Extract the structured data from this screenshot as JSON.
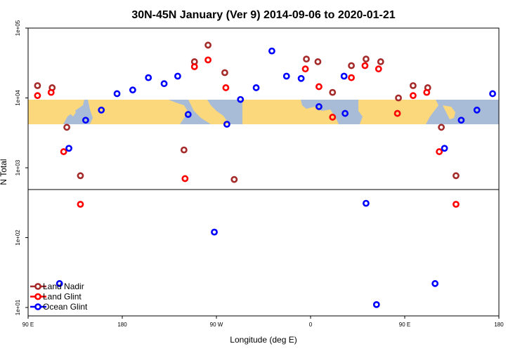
{
  "chart_data": {
    "type": "scatter",
    "title": "30N-45N January (Ver 9)   2014-09-06 to 2020-01-21",
    "xlabel": "Longitude (deg E)",
    "ylabel": "N Total",
    "y_scale": "log",
    "ylim": [
      10,
      100000
    ],
    "x_ticks": [
      {
        "value": 0,
        "label": "90 E"
      },
      {
        "value": 90,
        "label": "180"
      },
      {
        "value": 180,
        "label": "90 W"
      },
      {
        "value": 270,
        "label": "0"
      },
      {
        "value": 360,
        "label": "90 E"
      },
      {
        "value": 450,
        "label": "180"
      }
    ],
    "y_ticks": [
      {
        "value": 10,
        "label": "1e+01"
      },
      {
        "value": 100,
        "label": "1e+02"
      },
      {
        "value": 1000,
        "label": "1e+03"
      },
      {
        "value": 10000,
        "label": "1e+04"
      },
      {
        "value": 100000,
        "label": "1e+05"
      }
    ],
    "colors": {
      "land_nadir": "#a52a2a",
      "land_glint": "#ff0000",
      "ocean_glint": "#0000ff",
      "map_ocean": "#a8bcd8",
      "map_land": "#fcd87c"
    },
    "grid": false,
    "legend_position": "bottom-left",
    "series": [
      {
        "name": "Land Nadir",
        "color": "#a52a2a",
        "points": [
          {
            "x": 9,
            "y": 15000
          },
          {
            "x": 23,
            "y": 14000
          },
          {
            "x": 37,
            "y": 3800
          },
          {
            "x": 50,
            "y": 770
          },
          {
            "x": 149,
            "y": 1800
          },
          {
            "x": 159,
            "y": 33000
          },
          {
            "x": 172,
            "y": 57000
          },
          {
            "x": 188,
            "y": 23000
          },
          {
            "x": 197,
            "y": 680
          },
          {
            "x": 266,
            "y": 36000
          },
          {
            "x": 277,
            "y": 33000
          },
          {
            "x": 291,
            "y": 12000
          },
          {
            "x": 309,
            "y": 29000
          },
          {
            "x": 323,
            "y": 36000
          },
          {
            "x": 337,
            "y": 33000
          },
          {
            "x": 354,
            "y": 10000
          },
          {
            "x": 368,
            "y": 15000
          },
          {
            "x": 382,
            "y": 14000
          },
          {
            "x": 395,
            "y": 3800
          },
          {
            "x": 409,
            "y": 770
          }
        ]
      },
      {
        "name": "Land Glint",
        "color": "#ff0000",
        "points": [
          {
            "x": 9,
            "y": 10800
          },
          {
            "x": 22,
            "y": 12000
          },
          {
            "x": 34,
            "y": 1700
          },
          {
            "x": 50,
            "y": 300
          },
          {
            "x": 150,
            "y": 700
          },
          {
            "x": 159,
            "y": 28000
          },
          {
            "x": 172,
            "y": 35000
          },
          {
            "x": 189,
            "y": 14000
          },
          {
            "x": 265,
            "y": 26000
          },
          {
            "x": 278,
            "y": 14500
          },
          {
            "x": 291,
            "y": 5300
          },
          {
            "x": 309,
            "y": 19500
          },
          {
            "x": 322,
            "y": 29000
          },
          {
            "x": 335,
            "y": 26000
          },
          {
            "x": 353,
            "y": 6000
          },
          {
            "x": 368,
            "y": 10800
          },
          {
            "x": 381,
            "y": 12000
          },
          {
            "x": 393,
            "y": 1700
          },
          {
            "x": 409,
            "y": 300
          }
        ]
      },
      {
        "name": "Ocean Glint",
        "color": "#0000ff",
        "points": [
          {
            "x": 30,
            "y": 22
          },
          {
            "x": 39,
            "y": 1900
          },
          {
            "x": 55,
            "y": 4800
          },
          {
            "x": 70,
            "y": 6700
          },
          {
            "x": 85,
            "y": 11500
          },
          {
            "x": 100,
            "y": 13000
          },
          {
            "x": 115,
            "y": 19500
          },
          {
            "x": 130,
            "y": 16000
          },
          {
            "x": 143,
            "y": 20500
          },
          {
            "x": 153,
            "y": 5800
          },
          {
            "x": 178,
            "y": 120
          },
          {
            "x": 190,
            "y": 4200
          },
          {
            "x": 203,
            "y": 9500
          },
          {
            "x": 218,
            "y": 14000
          },
          {
            "x": 233,
            "y": 47000
          },
          {
            "x": 247,
            "y": 20500
          },
          {
            "x": 261,
            "y": 19000
          },
          {
            "x": 278,
            "y": 7500
          },
          {
            "x": 302,
            "y": 20500
          },
          {
            "x": 303,
            "y": 6000
          },
          {
            "x": 323,
            "y": 310
          },
          {
            "x": 333,
            "y": 11
          },
          {
            "x": 389,
            "y": 22
          },
          {
            "x": 398,
            "y": 1900
          },
          {
            "x": 414,
            "y": 4800
          },
          {
            "x": 429,
            "y": 6700
          },
          {
            "x": 444,
            "y": 11500
          }
        ]
      }
    ]
  }
}
